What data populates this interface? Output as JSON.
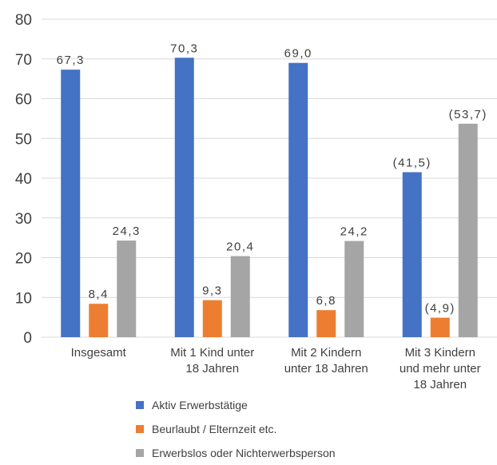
{
  "chart_data": {
    "type": "bar",
    "categories": [
      [
        "Insgesamt"
      ],
      [
        "Mit 1 Kind unter",
        "18 Jahren"
      ],
      [
        "Mit 2 Kindern",
        "unter 18 Jahren"
      ],
      [
        "Mit 3 Kindern",
        "und mehr unter",
        "18 Jahren"
      ]
    ],
    "series": [
      {
        "name": "Aktiv Erwerbstätige",
        "color": "#4472c4",
        "values": [
          67.3,
          70.3,
          69.0,
          41.5
        ],
        "labels": [
          "67,3",
          "70,3",
          "69,0",
          "(41,5)"
        ]
      },
      {
        "name": "Beurlaubt / Elternzeit etc.",
        "color": "#ed7d31",
        "values": [
          8.4,
          9.3,
          6.8,
          4.9
        ],
        "labels": [
          "8,4",
          "9,3",
          "6,8",
          "(4,9)"
        ]
      },
      {
        "name": "Erwerbslos oder Nichterwerbsperson",
        "color": "#a5a5a5",
        "values": [
          24.3,
          20.4,
          24.2,
          53.7
        ],
        "labels": [
          "24,3",
          "20,4",
          "24,2",
          "(53,7)"
        ]
      }
    ],
    "ylim": [
      0,
      80
    ],
    "yticks": [
      0,
      10,
      20,
      30,
      40,
      50,
      60,
      70,
      80
    ],
    "grid": true,
    "legend_position": "bottom"
  }
}
